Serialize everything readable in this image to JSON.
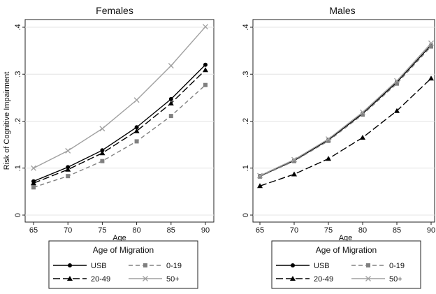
{
  "chart_data": [
    {
      "type": "line",
      "title": "Females",
      "xlabel": "Age",
      "ylabel": "Risk of Cognitive Impairment",
      "x": [
        65,
        70,
        75,
        80,
        85,
        90
      ],
      "xlim": [
        65,
        90
      ],
      "ylim": [
        0,
        0.4
      ],
      "xticks": [
        "65",
        "70",
        "75",
        "80",
        "85",
        "90"
      ],
      "yticks": [
        {
          "value": 0,
          "label": "0"
        },
        {
          "value": 0.1,
          "label": ".1"
        },
        {
          "value": 0.2,
          "label": ".2"
        },
        {
          "value": 0.3,
          "label": ".3"
        },
        {
          "value": 0.4,
          "label": ".4"
        }
      ],
      "grid": true,
      "series": [
        {
          "name": "USB",
          "values": [
            0.072,
            0.102,
            0.138,
            0.187,
            0.247,
            0.32
          ],
          "color": "#000000",
          "marker": "circle",
          "dash": "solid"
        },
        {
          "name": "0-19",
          "values": [
            0.059,
            0.083,
            0.115,
            0.157,
            0.211,
            0.277
          ],
          "color": "#808080",
          "marker": "square",
          "dash": "dashed"
        },
        {
          "name": "20-49",
          "values": [
            0.068,
            0.097,
            0.132,
            0.179,
            0.238,
            0.309
          ],
          "color": "#000000",
          "marker": "triangle",
          "dash": "longdash"
        },
        {
          "name": "50+",
          "values": [
            0.1,
            0.137,
            0.184,
            0.245,
            0.318,
            0.401
          ],
          "color": "#a0a0a0",
          "marker": "x",
          "dash": "solid"
        }
      ],
      "legend": {
        "title": "Age of Migration",
        "placement": "bottom",
        "order": [
          "USB",
          "0-19",
          "20-49",
          "50+"
        ]
      }
    },
    {
      "type": "line",
      "title": "Males",
      "xlabel": "Age",
      "ylabel": "",
      "x": [
        65,
        70,
        75,
        80,
        85,
        90
      ],
      "xlim": [
        65,
        90
      ],
      "ylim": [
        0,
        0.4
      ],
      "xticks": [
        "65",
        "70",
        "75",
        "80",
        "85",
        "90"
      ],
      "yticks": [
        {
          "value": 0,
          "label": "0"
        },
        {
          "value": 0.1,
          "label": ".1"
        },
        {
          "value": 0.2,
          "label": ".2"
        },
        {
          "value": 0.3,
          "label": ".3"
        },
        {
          "value": 0.4,
          "label": ".4"
        }
      ],
      "grid": true,
      "series": [
        {
          "name": "USB",
          "values": [
            0.083,
            0.116,
            0.16,
            0.216,
            0.283,
            0.362
          ],
          "color": "#000000",
          "marker": "circle",
          "dash": "solid"
        },
        {
          "name": "0-19",
          "values": [
            0.082,
            0.115,
            0.158,
            0.214,
            0.28,
            0.359
          ],
          "color": "#808080",
          "marker": "square",
          "dash": "dashed"
        },
        {
          "name": "20-49",
          "values": [
            0.062,
            0.087,
            0.12,
            0.165,
            0.222,
            0.291
          ],
          "color": "#000000",
          "marker": "triangle",
          "dash": "longdash"
        },
        {
          "name": "50+",
          "values": [
            0.084,
            0.118,
            0.162,
            0.219,
            0.286,
            0.366
          ],
          "color": "#a0a0a0",
          "marker": "x",
          "dash": "solid"
        }
      ],
      "legend": {
        "title": "Age of Migration",
        "placement": "bottom",
        "order": [
          "USB",
          "0-19",
          "20-49",
          "50+"
        ]
      }
    }
  ]
}
